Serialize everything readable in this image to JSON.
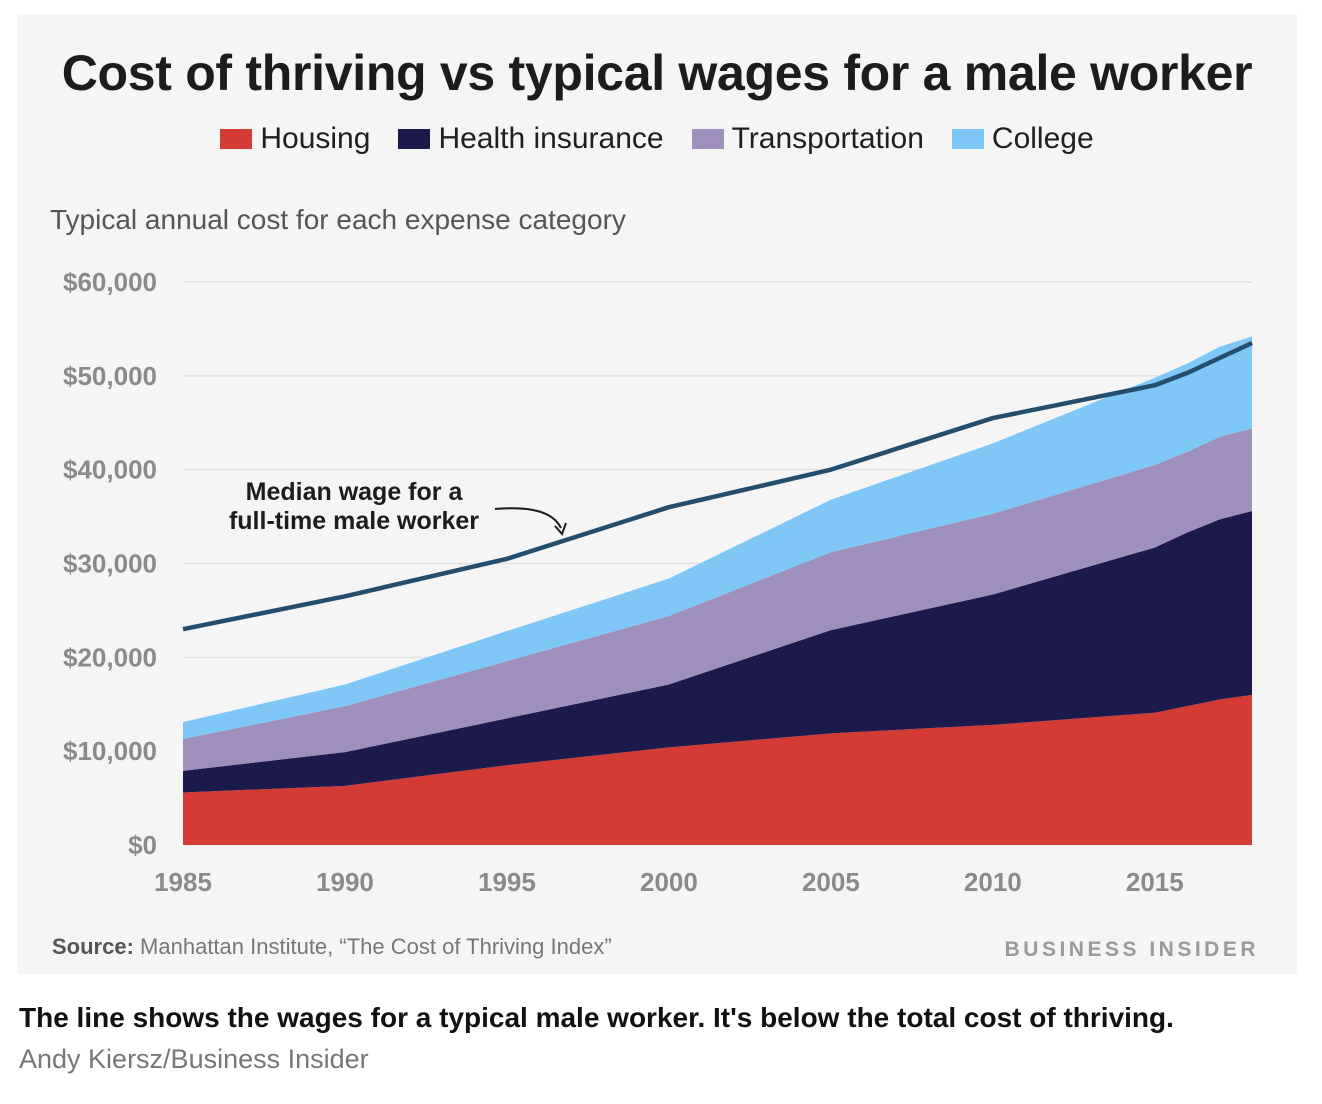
{
  "chart_data": {
    "type": "area",
    "title": "Cost of thriving vs typical wages for a male worker",
    "subtitle": "Typical annual cost for each expense category",
    "x": [
      1985,
      1990,
      1995,
      2000,
      2005,
      2010,
      2015,
      2016,
      2017,
      2018
    ],
    "xlim": [
      1985,
      2018
    ],
    "ylim": [
      0,
      60000
    ],
    "x_ticks": [
      1985,
      1990,
      1995,
      2000,
      2005,
      2010,
      2015
    ],
    "y_ticks": [
      0,
      10000,
      20000,
      30000,
      40000,
      50000,
      60000
    ],
    "y_tick_labels": [
      "$0",
      "$10,000",
      "$20,000",
      "$30,000",
      "$40,000",
      "$50,000",
      "$60,000"
    ],
    "stacked": true,
    "series": [
      {
        "name": "Housing",
        "color": "#d43b35",
        "values": [
          5600,
          6300,
          8500,
          10400,
          11900,
          12800,
          14100,
          14800,
          15500,
          16000
        ]
      },
      {
        "name": "Health insurance",
        "color": "#1b1a4a",
        "values": [
          2300,
          3600,
          5000,
          6700,
          11000,
          13900,
          17600,
          18500,
          19200,
          19600
        ]
      },
      {
        "name": "Transportation",
        "color": "#9e8fbd",
        "values": [
          3400,
          4900,
          6100,
          7300,
          8300,
          8600,
          8800,
          8600,
          8800,
          8800
        ]
      },
      {
        "name": "College",
        "color": "#7ec7f6",
        "values": [
          1800,
          2300,
          3200,
          4000,
          5600,
          7500,
          9300,
          9400,
          9600,
          9800
        ]
      }
    ],
    "line": {
      "name": "Median wage for a full-time male worker",
      "color": "#244e6e",
      "values": [
        23000,
        26500,
        30500,
        36000,
        40000,
        45500,
        49000,
        50300,
        51900,
        53500
      ]
    },
    "annotation": {
      "lines": [
        "Median wage for a",
        "full-time male worker"
      ]
    },
    "legend_position": "top",
    "grid": "horizontal"
  },
  "source": {
    "label": "Source:",
    "text": "Manhattan Institute, “The Cost of Thriving Index”"
  },
  "brand": "BUSINESS INSIDER",
  "caption": "The line shows the wages for a typical male worker. It's below the total cost of thriving.",
  "credit": "Andy Kiersz/Business Insider"
}
